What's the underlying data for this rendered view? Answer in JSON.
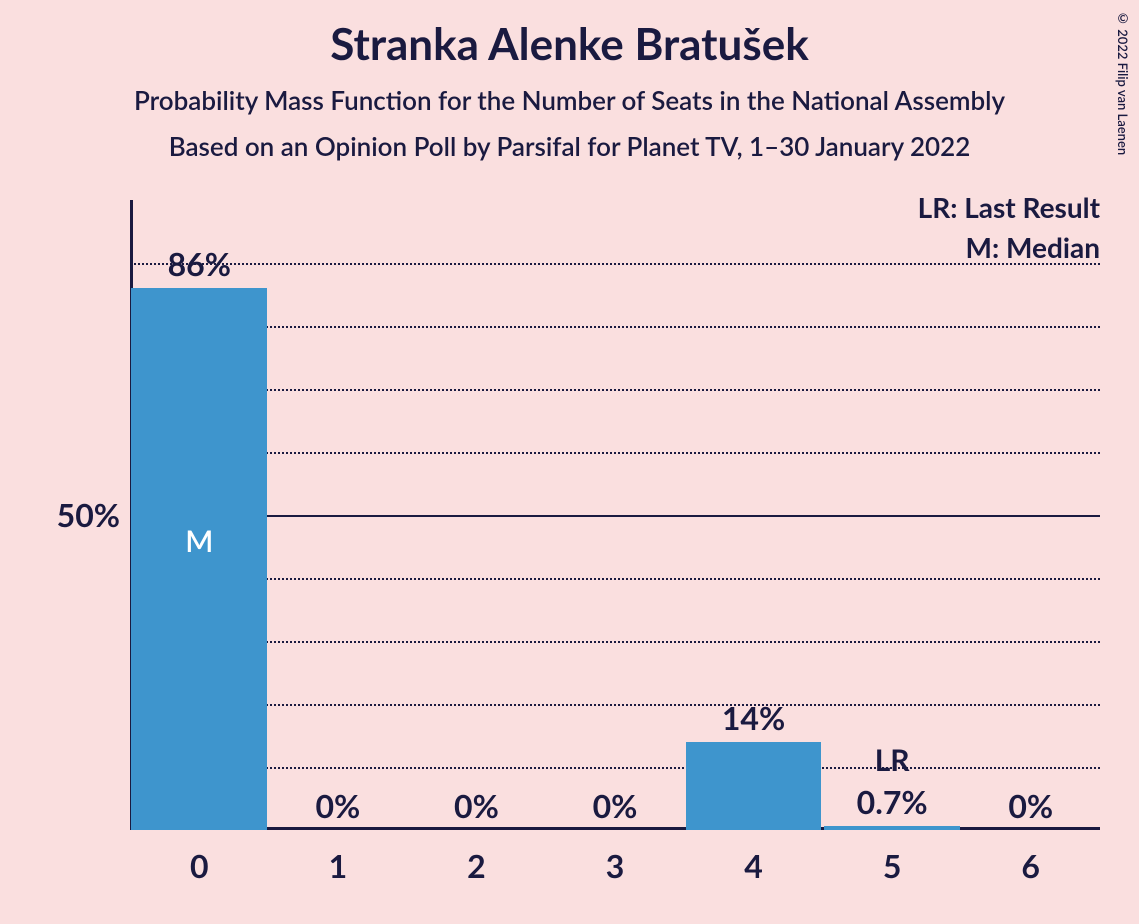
{
  "copyright": "© 2022 Filip van Laenen",
  "title": "Stranka Alenke Bratušek",
  "subtitle1": "Probability Mass Function for the Number of Seats in the National Assembly",
  "subtitle2": "Based on an Opinion Poll by Parsifal for Planet TV, 1–30 January 2022",
  "legend": {
    "lr": "LR: Last Result",
    "m": "M: Median"
  },
  "chart": {
    "type": "bar",
    "background_color": "#fadfdf",
    "bar_color": "#3e95cd",
    "text_color": "#1a1a40",
    "bar_text_color": "#ffffff",
    "grid_color": "#1a1a40",
    "ymax": 100,
    "y_tick_shown": 50,
    "y_tick_label": "50%",
    "gridline_step": 10,
    "categories": [
      "0",
      "1",
      "2",
      "3",
      "4",
      "5",
      "6"
    ],
    "values": [
      86,
      0,
      0,
      0,
      14,
      0.7,
      0
    ],
    "value_labels": [
      "86%",
      "0%",
      "0%",
      "0%",
      "14%",
      "0.7%",
      "0%"
    ],
    "median_index": 0,
    "median_marker": "M",
    "last_result_index": 5,
    "last_result_marker": "LR",
    "bar_width_ratio": 0.98,
    "title_fontsize": 44,
    "subtitle_fontsize": 26,
    "label_fontsize": 32,
    "legend_fontsize": 28
  }
}
